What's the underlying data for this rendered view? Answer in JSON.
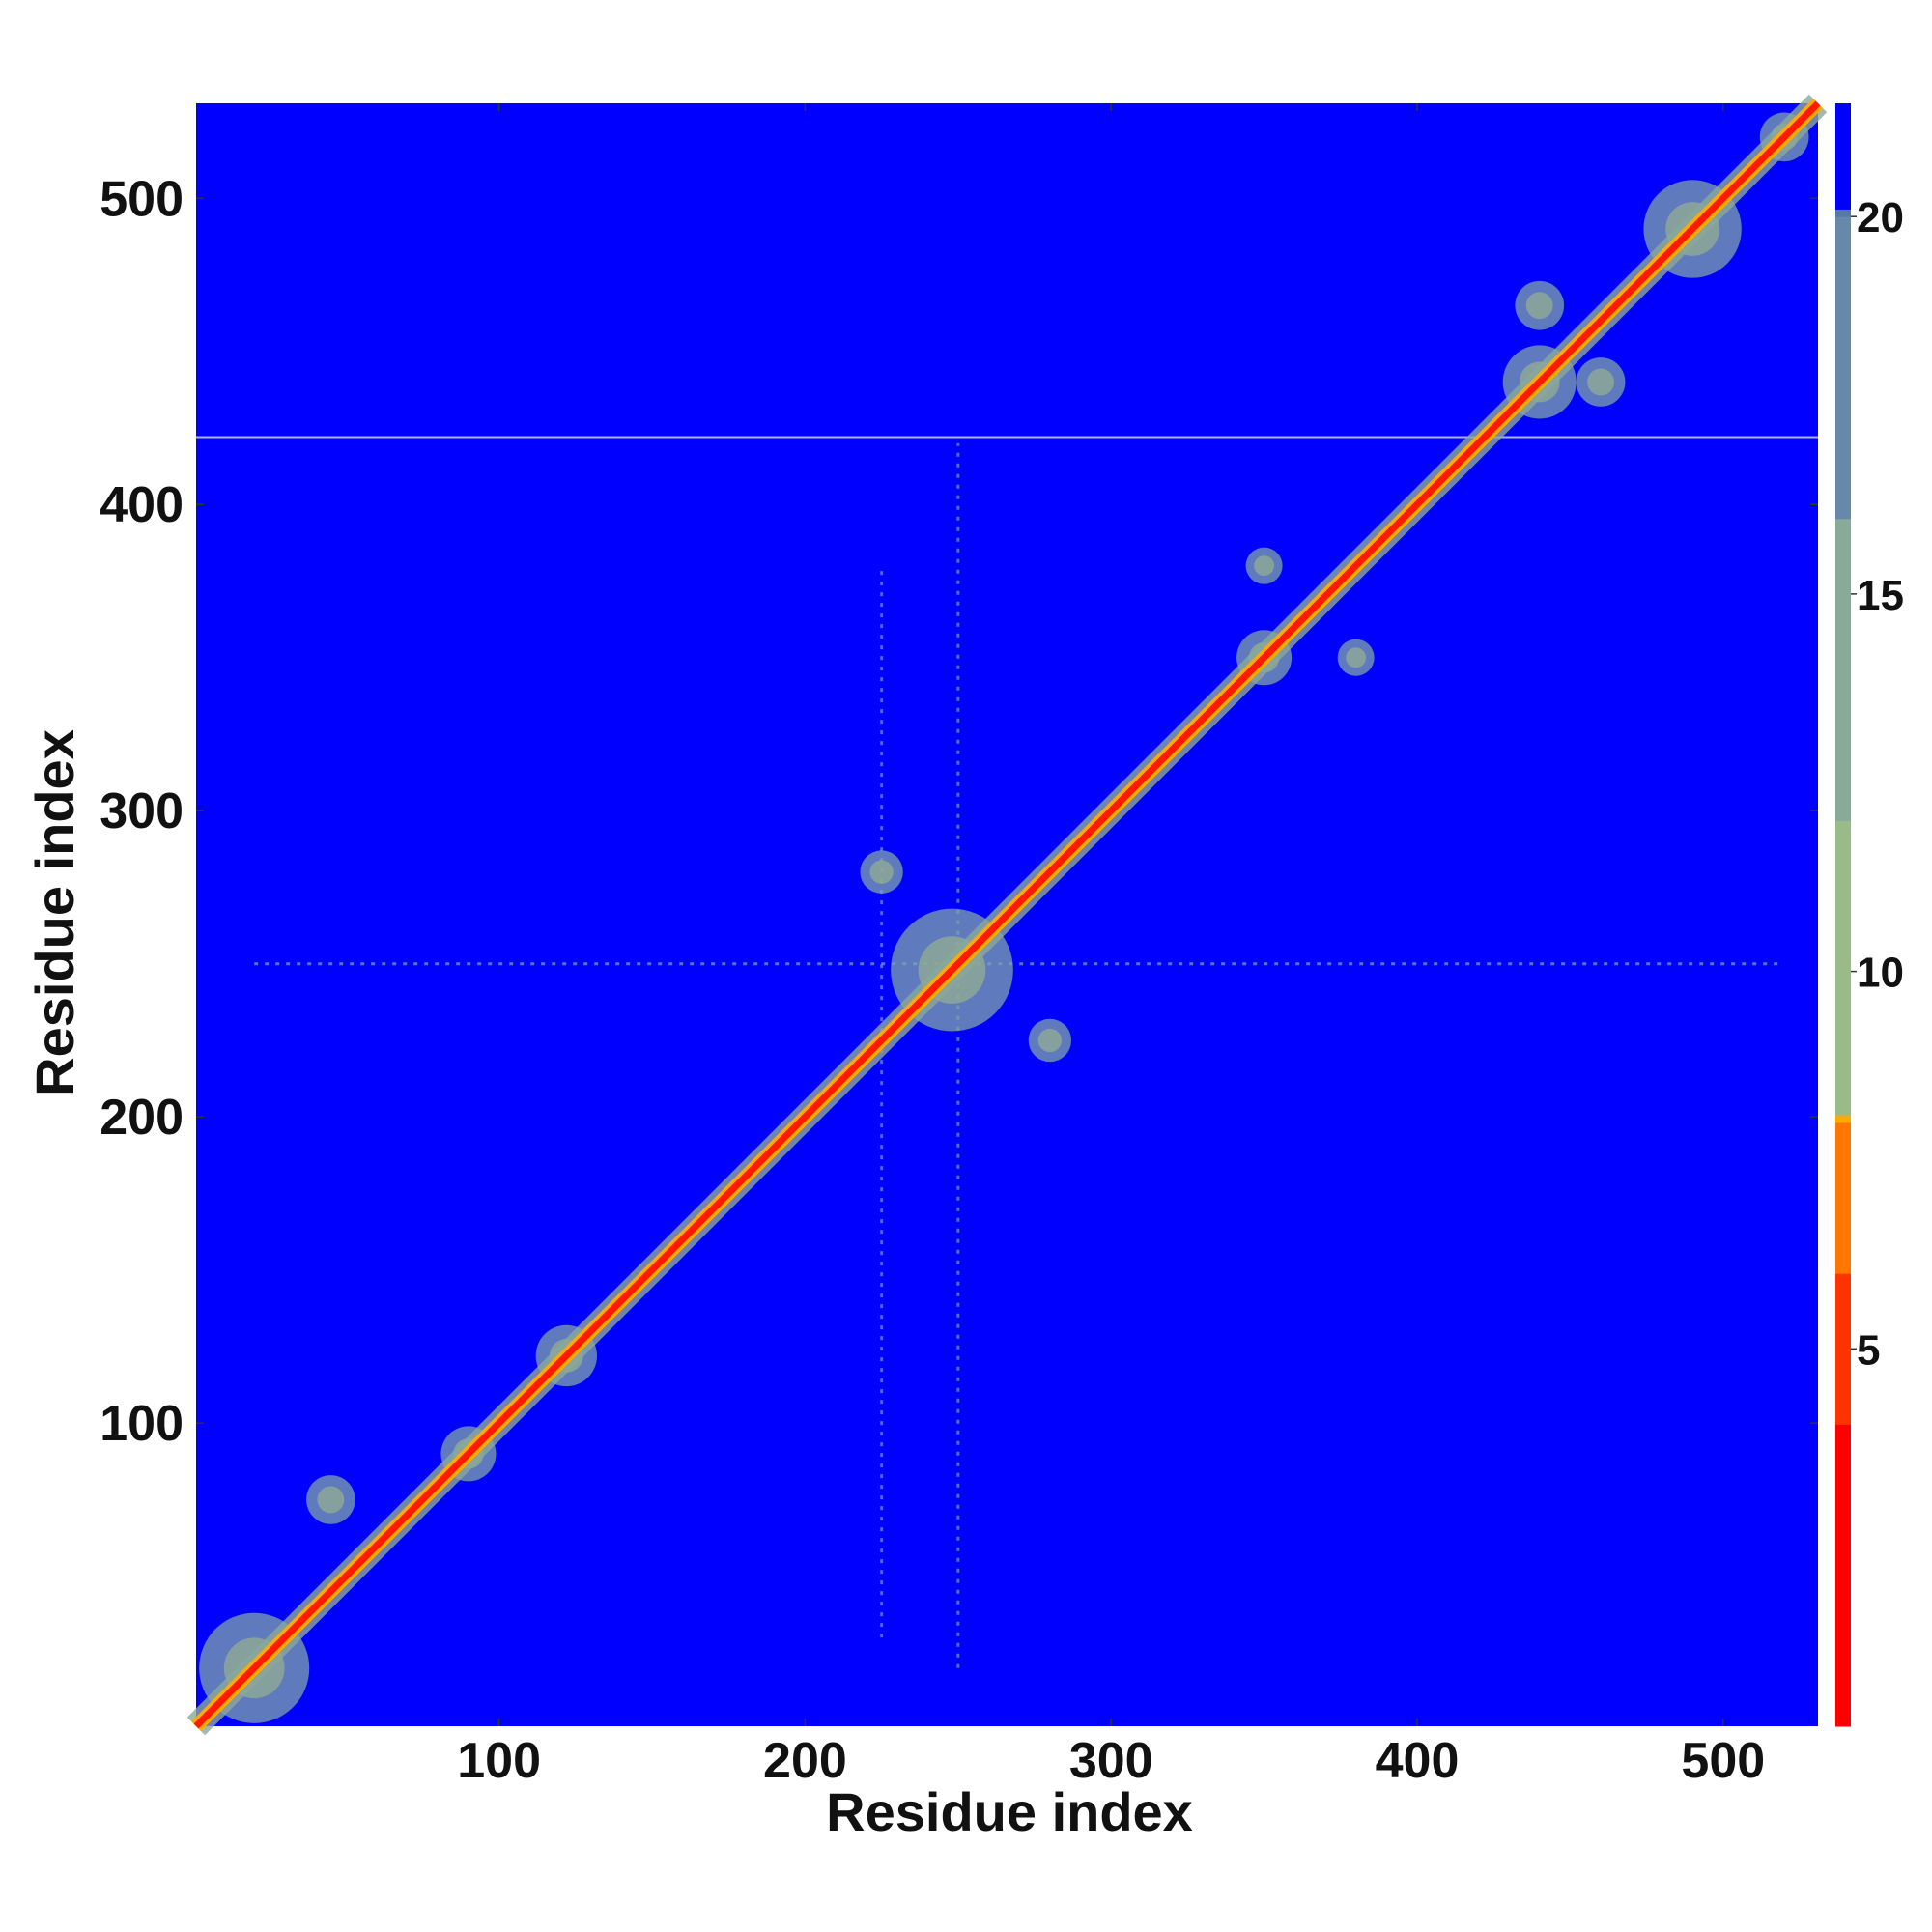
{
  "chart_data": {
    "type": "heatmap",
    "title": "",
    "xlabel": "Residue index",
    "ylabel": "Residue index",
    "xlim": [
      1,
      531
    ],
    "ylim": [
      1,
      531
    ],
    "x_ticks": [
      100,
      200,
      300,
      400,
      500
    ],
    "y_ticks": [
      100,
      200,
      300,
      400,
      500
    ],
    "colorbar": {
      "ticks": [
        5,
        10,
        15,
        20
      ],
      "range": [
        0,
        21.5
      ],
      "colors": [
        {
          "value": 0,
          "color": "#ff0000"
        },
        {
          "value": 4,
          "color": "#ff3300"
        },
        {
          "value": 6,
          "color": "#ff7700"
        },
        {
          "value": 8,
          "color": "#ffaa00"
        },
        {
          "value": 8.1,
          "color": "#99bb88"
        },
        {
          "value": 12,
          "color": "#88aa99"
        },
        {
          "value": 16,
          "color": "#6688aa"
        },
        {
          "value": 20,
          "color": "#5577aa"
        },
        {
          "value": 20.1,
          "color": "#0000ff"
        },
        {
          "value": 21.5,
          "color": "#0000ff"
        }
      ]
    },
    "grid": false,
    "diagonal": {
      "from": 1,
      "to": 531
    },
    "contact_blobs": [
      {
        "x": 20,
        "y": 20,
        "r": 18
      },
      {
        "x": 45,
        "y": 75,
        "r": 8
      },
      {
        "x": 90,
        "y": 90,
        "r": 9
      },
      {
        "x": 122,
        "y": 122,
        "r": 10
      },
      {
        "x": 248,
        "y": 248,
        "r": 20
      },
      {
        "x": 225,
        "y": 280,
        "r": 7
      },
      {
        "x": 280,
        "y": 225,
        "r": 7
      },
      {
        "x": 350,
        "y": 350,
        "r": 9
      },
      {
        "x": 350,
        "y": 380,
        "r": 6
      },
      {
        "x": 380,
        "y": 350,
        "r": 6
      },
      {
        "x": 440,
        "y": 440,
        "r": 12
      },
      {
        "x": 460,
        "y": 440,
        "r": 8
      },
      {
        "x": 440,
        "y": 465,
        "r": 8
      },
      {
        "x": 490,
        "y": 490,
        "r": 16
      },
      {
        "x": 520,
        "y": 520,
        "r": 8
      }
    ],
    "streaks": [
      {
        "orientation": "vertical",
        "at": 250,
        "from": 20,
        "to": 420
      },
      {
        "orientation": "horizontal",
        "at": 250,
        "from": 20,
        "to": 520
      },
      {
        "orientation": "vertical",
        "at": 225,
        "from": 30,
        "to": 380
      },
      {
        "orientation": "horizontal",
        "at": 422,
        "from": 1,
        "to": 531
      }
    ]
  }
}
